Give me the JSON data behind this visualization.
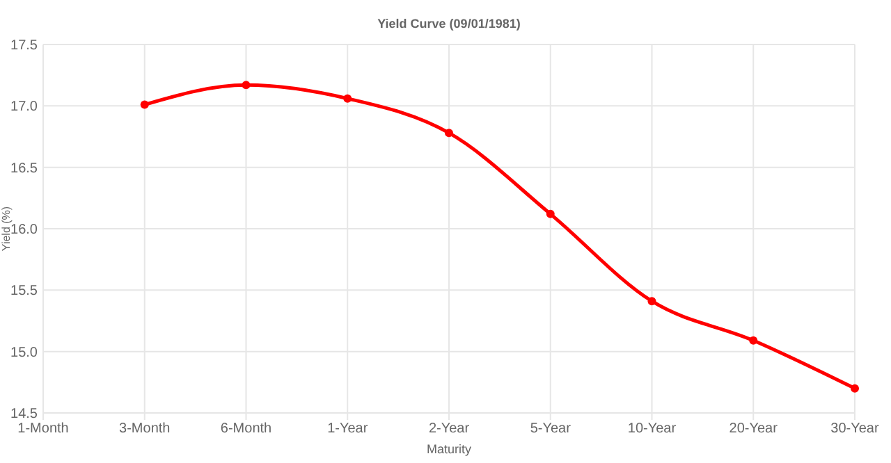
{
  "chart_data": {
    "type": "line",
    "title": "Yield Curve (09/01/1981)",
    "xlabel": "Maturity",
    "ylabel": "Yield (%)",
    "categories": [
      "1-Month",
      "3-Month",
      "6-Month",
      "1-Year",
      "2-Year",
      "5-Year",
      "10-Year",
      "20-Year",
      "30-Year"
    ],
    "series": [
      {
        "color": "#ff0000",
        "values": [
          null,
          17.01,
          17.17,
          17.06,
          16.78,
          16.12,
          15.41,
          15.09,
          14.7
        ]
      }
    ],
    "ylim": [
      14.5,
      17.5
    ],
    "yticks": [
      {
        "value": 14.5,
        "label": "14.5"
      },
      {
        "value": 15,
        "label": "15.0"
      },
      {
        "value": 15.5,
        "label": "15.5"
      },
      {
        "value": 16,
        "label": "16.0"
      },
      {
        "value": 16.5,
        "label": "16.5"
      },
      {
        "value": 17,
        "label": "17.0"
      },
      {
        "value": 17.5,
        "label": "17.5"
      }
    ],
    "grid": true,
    "marker": "circle",
    "line_style": "solid"
  }
}
